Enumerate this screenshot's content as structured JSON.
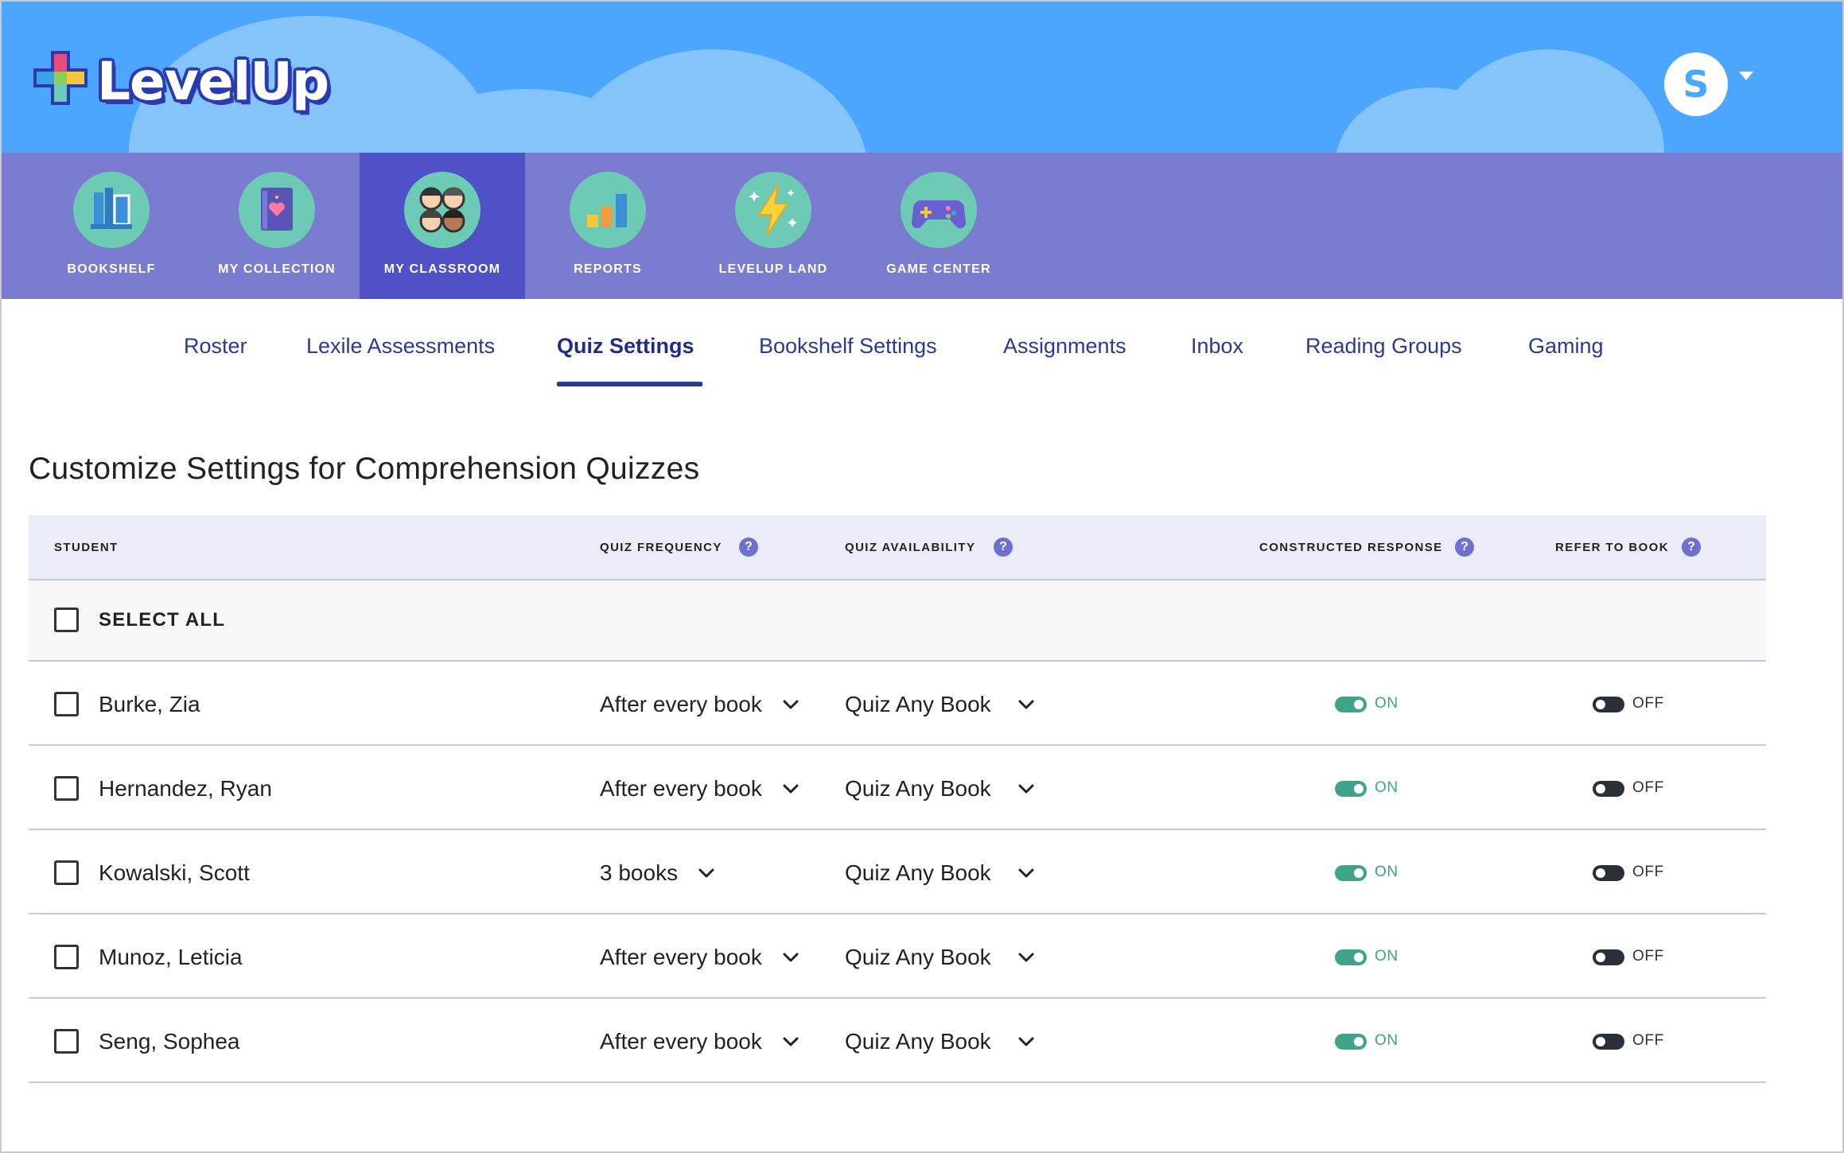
{
  "app": {
    "logo_text": "LevelUp",
    "user_initial": "S"
  },
  "nav": {
    "items": [
      {
        "label": "BOOKSHELF",
        "icon": "bookshelf-icon"
      },
      {
        "label": "MY COLLECTION",
        "icon": "book-heart-icon"
      },
      {
        "label": "MY CLASSROOM",
        "icon": "students-icon",
        "active": true
      },
      {
        "label": "REPORTS",
        "icon": "bar-chart-icon"
      },
      {
        "label": "LEVELUP LAND",
        "icon": "lightning-icon"
      },
      {
        "label": "GAME CENTER",
        "icon": "gamepad-icon"
      }
    ]
  },
  "subtabs": [
    {
      "label": "Roster"
    },
    {
      "label": "Lexile Assessments"
    },
    {
      "label": "Quiz Settings",
      "active": true
    },
    {
      "label": "Bookshelf Settings"
    },
    {
      "label": "Assignments"
    },
    {
      "label": "Inbox"
    },
    {
      "label": "Reading Groups"
    },
    {
      "label": "Gaming"
    }
  ],
  "page_title": "Customize Settings for Comprehension Quizzes",
  "table": {
    "headers": {
      "student": "STUDENT",
      "quiz_frequency": "QUIZ FREQUENCY",
      "quiz_availability": "QUIZ AVAILABILITY",
      "constructed_response": "CONSTRUCTED RESPONSE",
      "refer_to_book": "REFER TO BOOK",
      "help_glyph": "?"
    },
    "select_all": "SELECT ALL",
    "rows": [
      {
        "name": "Burke, Zia",
        "frequency": "After every book",
        "availability": "Quiz Any Book",
        "constructed": "ON",
        "refer": "OFF"
      },
      {
        "name": "Hernandez, Ryan",
        "frequency": "After every book",
        "availability": "Quiz Any Book",
        "constructed": "ON",
        "refer": "OFF"
      },
      {
        "name": "Kowalski, Scott",
        "frequency": "3 books",
        "availability": "Quiz Any Book",
        "constructed": "ON",
        "refer": "OFF"
      },
      {
        "name": "Munoz, Leticia",
        "frequency": "After every book",
        "availability": "Quiz Any Book",
        "constructed": "ON",
        "refer": "OFF"
      },
      {
        "name": "Seng, Sophea",
        "frequency": "After every book",
        "availability": "Quiz Any Book",
        "constructed": "ON",
        "refer": "OFF"
      }
    ]
  },
  "colors": {
    "header_bg": "#4da6fd",
    "nav_bg": "#7a7ccf",
    "nav_active": "#5050c7",
    "accent_blue": "#2a3a8f",
    "toggle_on": "#3fa38a",
    "toggle_off": "#2b2f3a"
  }
}
